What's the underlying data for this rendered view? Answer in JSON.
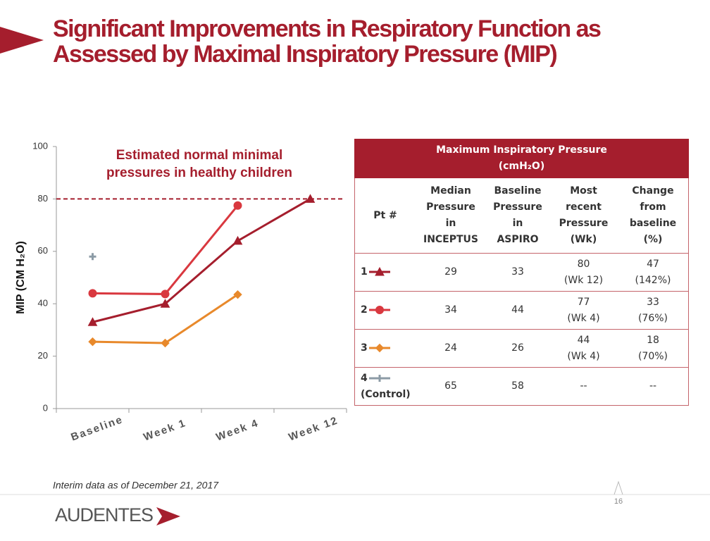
{
  "header": {
    "title": [
      "Significant Improvements in Respiratory Function as",
      "Assessed by Maximal Inspiratory Pressure (MIP)"
    ]
  },
  "chart_data": {
    "type": "line",
    "categories": [
      "Baseline",
      "Week 1",
      "Week 4",
      "Week  12"
    ],
    "series": [
      {
        "color": "#a51e2d",
        "marker": "triangle",
        "values": [
          33,
          40,
          64,
          80
        ]
      },
      {
        "color": "#d9383f",
        "marker": "circle",
        "values": [
          44,
          43.7,
          77.5,
          null
        ]
      },
      {
        "color": "#e8892b",
        "marker": "diamond",
        "values": [
          25.5,
          25,
          43.5,
          null
        ]
      },
      {
        "color": "#8c9ba6",
        "marker": "plus",
        "values": [
          58,
          null,
          null,
          null
        ]
      }
    ],
    "ylabel": "MIP (CM H₂O)",
    "ylim": [
      0,
      100
    ],
    "yticks": [
      0,
      20,
      40,
      60,
      80,
      100
    ],
    "reference_line": {
      "y": 80,
      "color": "#a51e2d",
      "dashed": true
    },
    "annotation": [
      "Estimated normal minimal",
      "pressures in healthy children"
    ]
  },
  "table": {
    "title": [
      "Maximum Inspiratory Pressure",
      "(cmH₂O)"
    ],
    "columns": [
      [
        "Pt #"
      ],
      [
        "Median",
        "Pressure",
        "in",
        "INCEPTUS"
      ],
      [
        "Baseline",
        "Pressure",
        "in",
        "ASPIRO"
      ],
      [
        "Most",
        "recent",
        "Pressure",
        "(Wk)"
      ],
      [
        "Change",
        "from",
        "baseline",
        "(%)"
      ]
    ],
    "rows": [
      [
        [
          "1"
        ],
        [
          "29"
        ],
        [
          "33"
        ],
        [
          "80",
          "(Wk 12)"
        ],
        [
          "47",
          "(142%)"
        ]
      ],
      [
        [
          "2"
        ],
        [
          "34"
        ],
        [
          "44"
        ],
        [
          "77",
          "(Wk 4)"
        ],
        [
          "33",
          "(76%)"
        ]
      ],
      [
        [
          "3"
        ],
        [
          "24"
        ],
        [
          "26"
        ],
        [
          "44",
          "(Wk 4)"
        ],
        [
          "18",
          "(70%)"
        ]
      ],
      [
        [
          "4",
          "(Control)"
        ],
        [
          "65"
        ],
        [
          "58"
        ],
        [
          "--"
        ],
        [
          "--"
        ]
      ]
    ]
  },
  "footer": {
    "note": "Interim data as of December 21, 2017",
    "logo": "AUDENTES",
    "page": "16"
  }
}
